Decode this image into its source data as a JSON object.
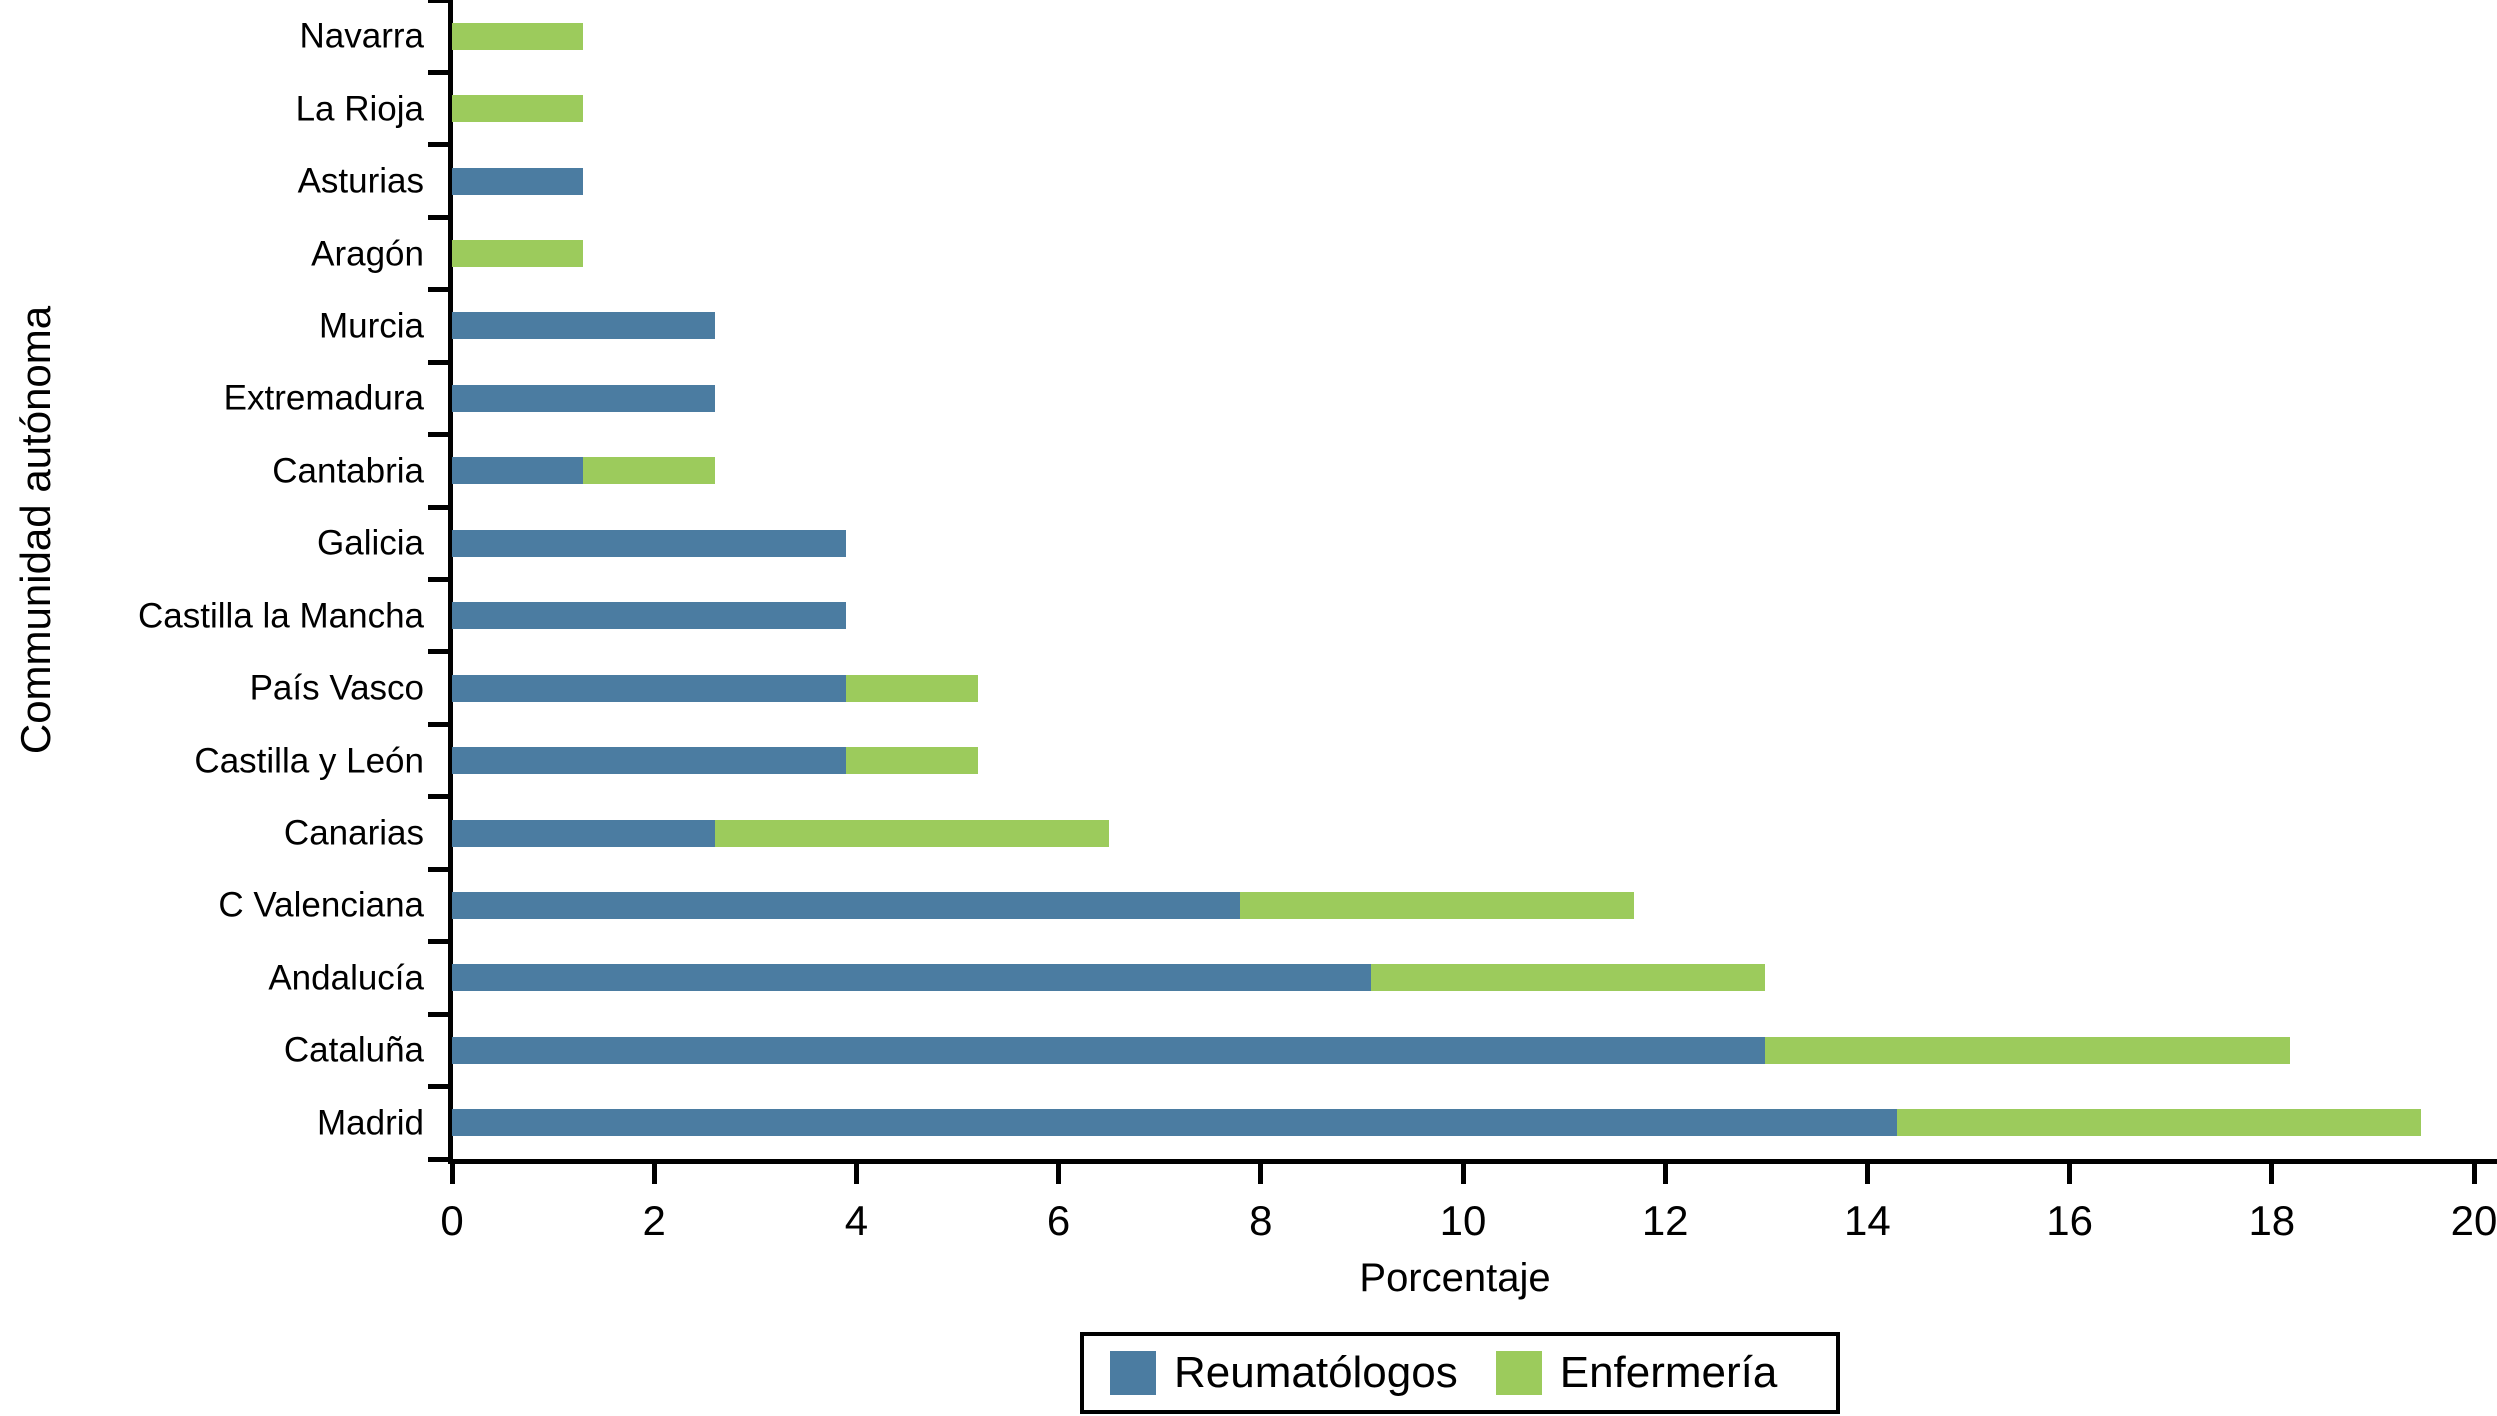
{
  "figure": {
    "background": "#ffffff",
    "axis_color": "#000000",
    "text_color": "#000000"
  },
  "axes": {
    "x_title": "Porcentaje",
    "y_title": "Communidad autónoma"
  },
  "legend": {
    "items": [
      {
        "label": "Reumatólogos",
        "color": "#4B7CA1"
      },
      {
        "label": "Enfermería",
        "color": "#9CCB5C"
      }
    ]
  },
  "chart_data": {
    "type": "bar",
    "orientation": "horizontal",
    "stacked": true,
    "title": "",
    "xlabel": "Porcentaje",
    "ylabel": "Communidad autónoma",
    "xlim": [
      0,
      20
    ],
    "xticks": [
      0,
      2,
      4,
      6,
      8,
      10,
      12,
      14,
      16,
      18,
      20
    ],
    "grid": false,
    "legend_position": "bottom-center",
    "categories_top_to_bottom": [
      "Navarra",
      "La Rioja",
      "Asturias",
      "Aragón",
      "Murcia",
      "Extremadura",
      "Cantabria",
      "Galicia",
      "Castilla la Mancha",
      "País Vasco",
      "Castilla y León",
      "Canarias",
      "C Valenciana",
      "Andalucía",
      "Cataluña",
      "Madrid"
    ],
    "series": [
      {
        "name": "Reumatólogos",
        "color": "#4B7CA1",
        "values": [
          0,
          0,
          1.3,
          0,
          2.6,
          2.6,
          1.3,
          3.9,
          3.9,
          3.9,
          3.9,
          2.6,
          7.79,
          9.09,
          12.99,
          14.29
        ]
      },
      {
        "name": "Enfermería",
        "color": "#9CCB5C",
        "values": [
          1.3,
          1.3,
          0,
          1.3,
          0,
          0,
          1.3,
          0,
          0,
          1.3,
          1.3,
          3.9,
          3.9,
          3.9,
          5.19,
          5.19
        ]
      }
    ],
    "totals": [
      1.3,
      1.3,
      1.3,
      1.3,
      2.6,
      2.6,
      2.6,
      3.9,
      3.9,
      5.2,
      5.2,
      6.5,
      11.69,
      12.99,
      18.18,
      19.48
    ]
  }
}
